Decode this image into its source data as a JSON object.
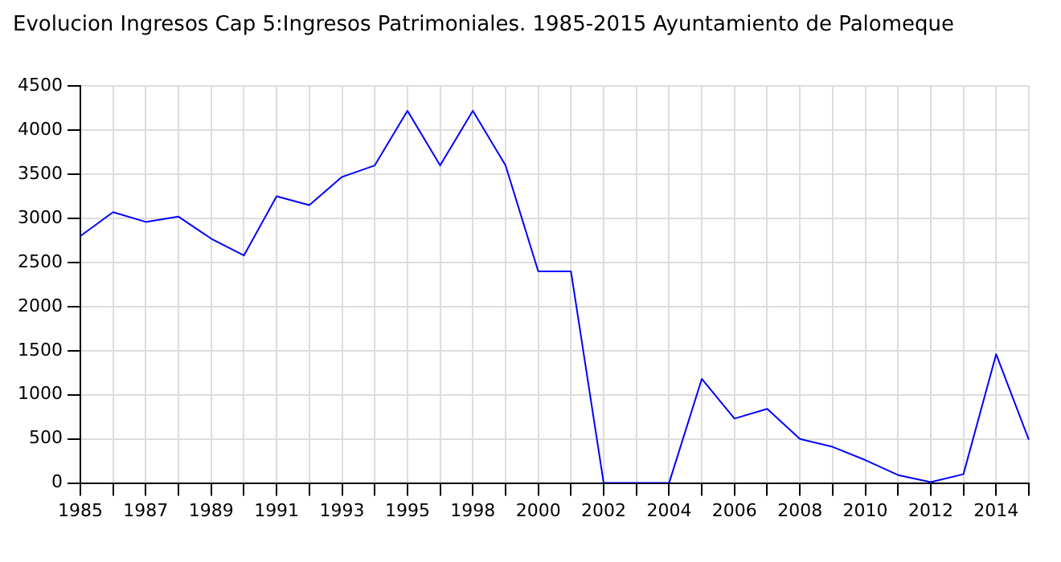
{
  "chart_data": {
    "type": "line",
    "title": "Evolucion Ingresos Cap 5:Ingresos Patrimoniales. 1985-2015 Ayuntamiento de Palomeque",
    "categories": [
      "1985",
      null,
      "1987",
      null,
      "1989",
      null,
      "1991",
      null,
      "1993",
      null,
      "1995",
      null,
      "1998",
      null,
      "2000",
      null,
      "2002",
      null,
      "2004",
      null,
      "2006",
      null,
      "2008",
      null,
      "2010",
      null,
      "2012",
      null,
      "2014",
      null
    ],
    "series": [
      {
        "color": "#0000ff",
        "values": [
          2800,
          3070,
          2960,
          3020,
          2770,
          2580,
          3250,
          3150,
          3470,
          3600,
          4220,
          3600,
          4220,
          3600,
          2400,
          2400,
          0,
          0,
          0,
          1180,
          730,
          840,
          500,
          410,
          260,
          90,
          10,
          100,
          1460,
          490
        ]
      }
    ],
    "ylim": [
      0,
      4500
    ],
    "yticks": [
      0,
      500,
      1000,
      1500,
      2000,
      2500,
      3000,
      3500,
      4000,
      4500
    ],
    "grid": true,
    "marker": "none",
    "line_style": "solid"
  }
}
